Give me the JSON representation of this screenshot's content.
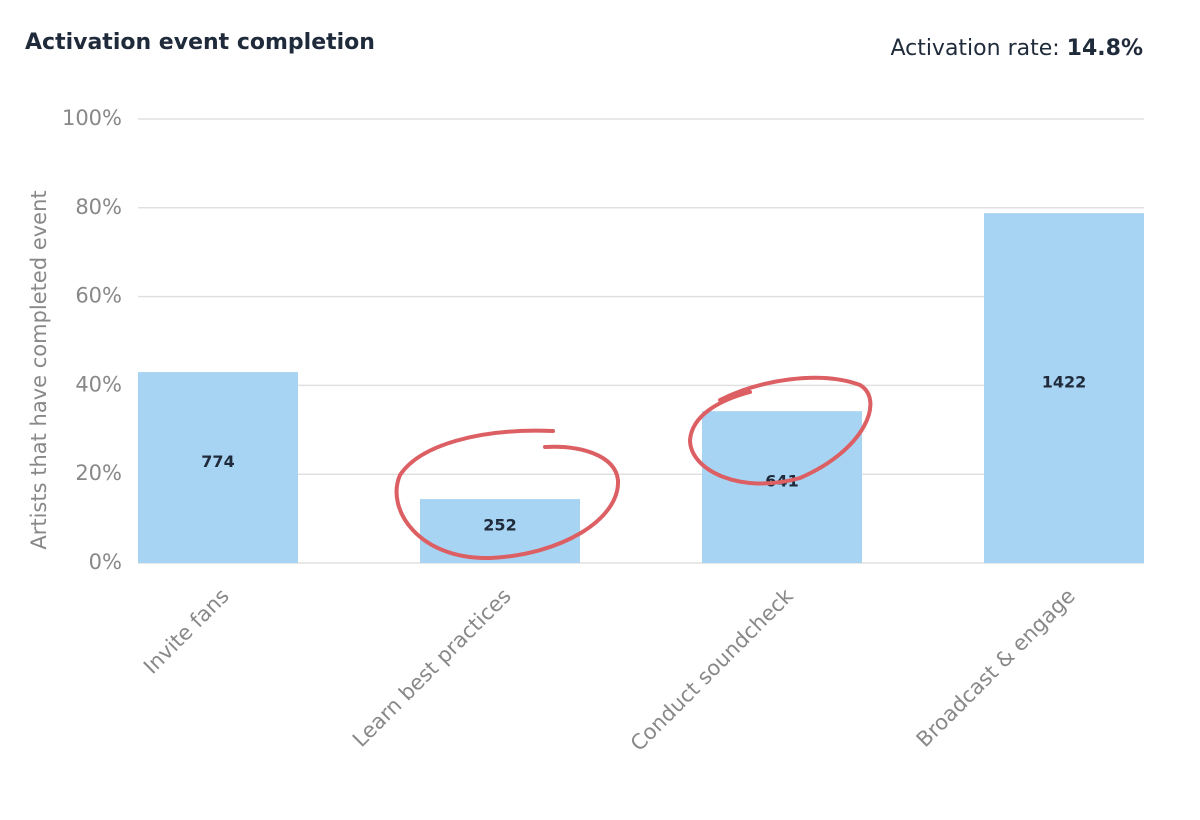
{
  "chart_data": {
    "type": "bar",
    "title": "Activation event completion",
    "rate_label": "Activation rate:",
    "rate_value": "14.8%",
    "y_label": "Artists that have completed event",
    "categories": [
      "Invite fans",
      "Learn best practices",
      "Conduct soundcheck",
      "Broadcast & engage"
    ],
    "values": [
      43.0,
      14.4,
      34.2,
      78.8
    ],
    "counts": [
      774,
      252,
      641,
      1422
    ],
    "color": "#a8d4f4",
    "ylim": [
      0,
      100
    ],
    "yticks": [
      {
        "value": 0,
        "label": "0%"
      },
      {
        "value": 20,
        "label": "20%"
      },
      {
        "value": 40,
        "label": "40%"
      },
      {
        "value": 60,
        "label": "60%"
      },
      {
        "value": 80,
        "label": "80%"
      },
      {
        "value": 100,
        "label": "100%"
      }
    ],
    "grid": true
  }
}
